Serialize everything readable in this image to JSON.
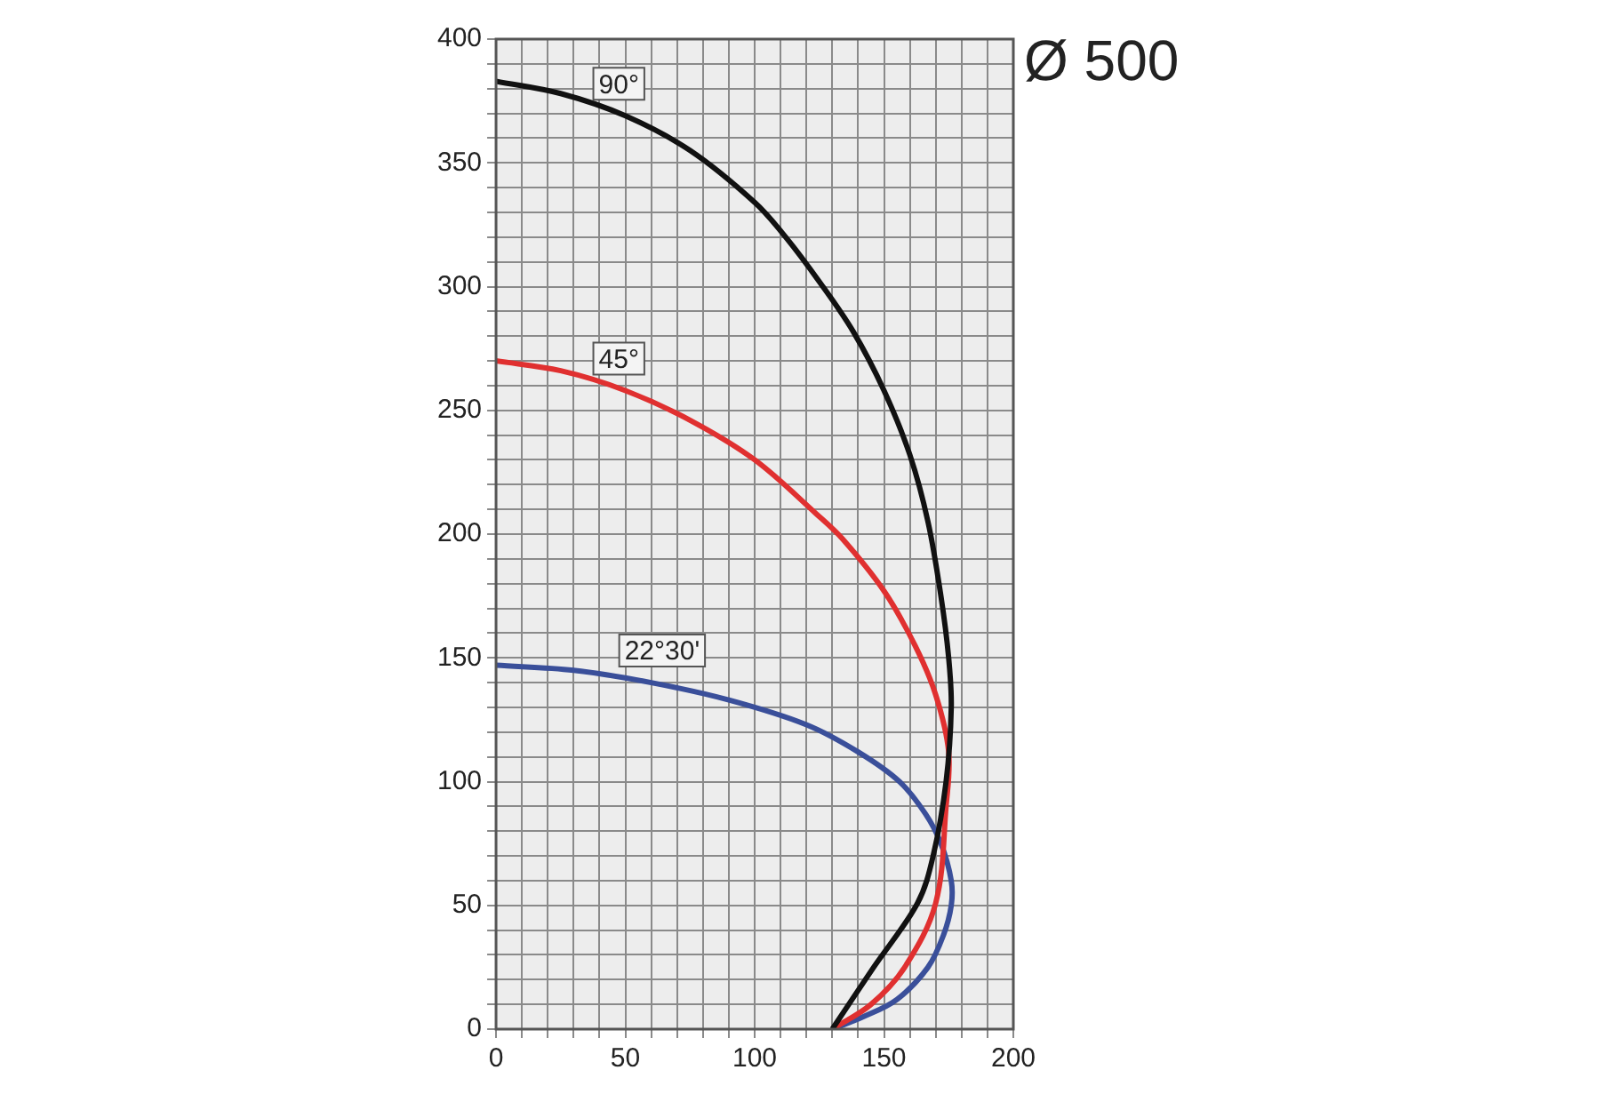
{
  "chart_data": {
    "type": "line",
    "title": "Ø 500",
    "series": [
      {
        "name": "90°",
        "color": "#111111",
        "x": [
          0,
          25,
          50,
          75,
          100,
          112,
          125,
          138,
          150,
          160,
          167,
          172,
          175,
          176,
          174,
          169,
          163,
          146,
          130
        ],
        "values": [
          383,
          378,
          369,
          355,
          334,
          320,
          302,
          282,
          258,
          232,
          205,
          175,
          150,
          130,
          100,
          70,
          51,
          25,
          0
        ]
      },
      {
        "name": "45°",
        "color": "#e03030",
        "x": [
          0,
          25,
          50,
          75,
          100,
          124,
          134,
          150,
          162,
          170,
          175,
          174,
          170,
          158,
          145,
          130
        ],
        "values": [
          270,
          266,
          258,
          246,
          230,
          208,
          198,
          177,
          155,
          135,
          112,
          90,
          51,
          25,
          10,
          0
        ]
      },
      {
        "name": "22°30'",
        "color": "#3a4f9a",
        "x": [
          0,
          30,
          60,
          90,
          120,
          140,
          156,
          166,
          172,
          176,
          176,
          173,
          167,
          155,
          142,
          130
        ],
        "values": [
          147,
          145,
          140,
          133,
          123,
          112,
          100,
          87,
          75,
          60,
          50,
          38,
          25,
          12,
          5,
          0
        ]
      }
    ],
    "xlim": [
      0,
      200
    ],
    "ylim": [
      0,
      400
    ],
    "xticks": [
      0,
      {
        "value": 10,
        "label": null
      },
      {
        "value": 20,
        "label": null
      },
      {
        "value": 30,
        "label": null
      },
      {
        "value": 40,
        "label": null
      },
      50,
      {
        "value": 60,
        "label": null
      },
      {
        "value": 70,
        "label": null
      },
      {
        "value": 80,
        "label": null
      },
      {
        "value": 90,
        "label": null
      },
      100,
      {
        "value": 110,
        "label": null
      },
      {
        "value": 120,
        "label": null
      },
      {
        "value": 130,
        "label": null
      },
      {
        "value": 140,
        "label": null
      },
      150,
      {
        "value": 160,
        "label": null
      },
      {
        "value": 170,
        "label": null
      },
      {
        "value": 180,
        "label": null
      },
      {
        "value": 190,
        "label": null
      },
      200
    ],
    "yticks": [
      0,
      {
        "value": 10,
        "label": null
      },
      {
        "value": 20,
        "label": null
      },
      {
        "value": 30,
        "label": null
      },
      {
        "value": 40,
        "label": null
      },
      50,
      {
        "value": 60,
        "label": null
      },
      {
        "value": 70,
        "label": null
      },
      {
        "value": 80,
        "label": null
      },
      {
        "value": 90,
        "label": null
      },
      100,
      {
        "value": 110,
        "label": null
      },
      {
        "value": 120,
        "label": null
      },
      {
        "value": 130,
        "label": null
      },
      {
        "value": 140,
        "label": null
      },
      150,
      {
        "value": 160,
        "label": null
      },
      {
        "value": 170,
        "label": null
      },
      {
        "value": 180,
        "label": null
      },
      {
        "value": 190,
        "label": null
      },
      200,
      {
        "value": 210,
        "label": null
      },
      {
        "value": 220,
        "label": null
      },
      {
        "value": 230,
        "label": null
      },
      {
        "value": 240,
        "label": null
      },
      250,
      {
        "value": 260,
        "label": null
      },
      {
        "value": 270,
        "label": null
      },
      {
        "value": 280,
        "label": null
      },
      {
        "value": 290,
        "label": null
      },
      300,
      {
        "value": 310,
        "label": null
      },
      {
        "value": 320,
        "label": null
      },
      {
        "value": 330,
        "label": null
      },
      {
        "value": 340,
        "label": null
      },
      350,
      {
        "value": 360,
        "label": null
      },
      {
        "value": 370,
        "label": null
      },
      {
        "value": 380,
        "label": null
      },
      {
        "value": 390,
        "label": null
      },
      400
    ],
    "grid": true,
    "legend": false,
    "marker": "none",
    "line_style": "solid"
  }
}
